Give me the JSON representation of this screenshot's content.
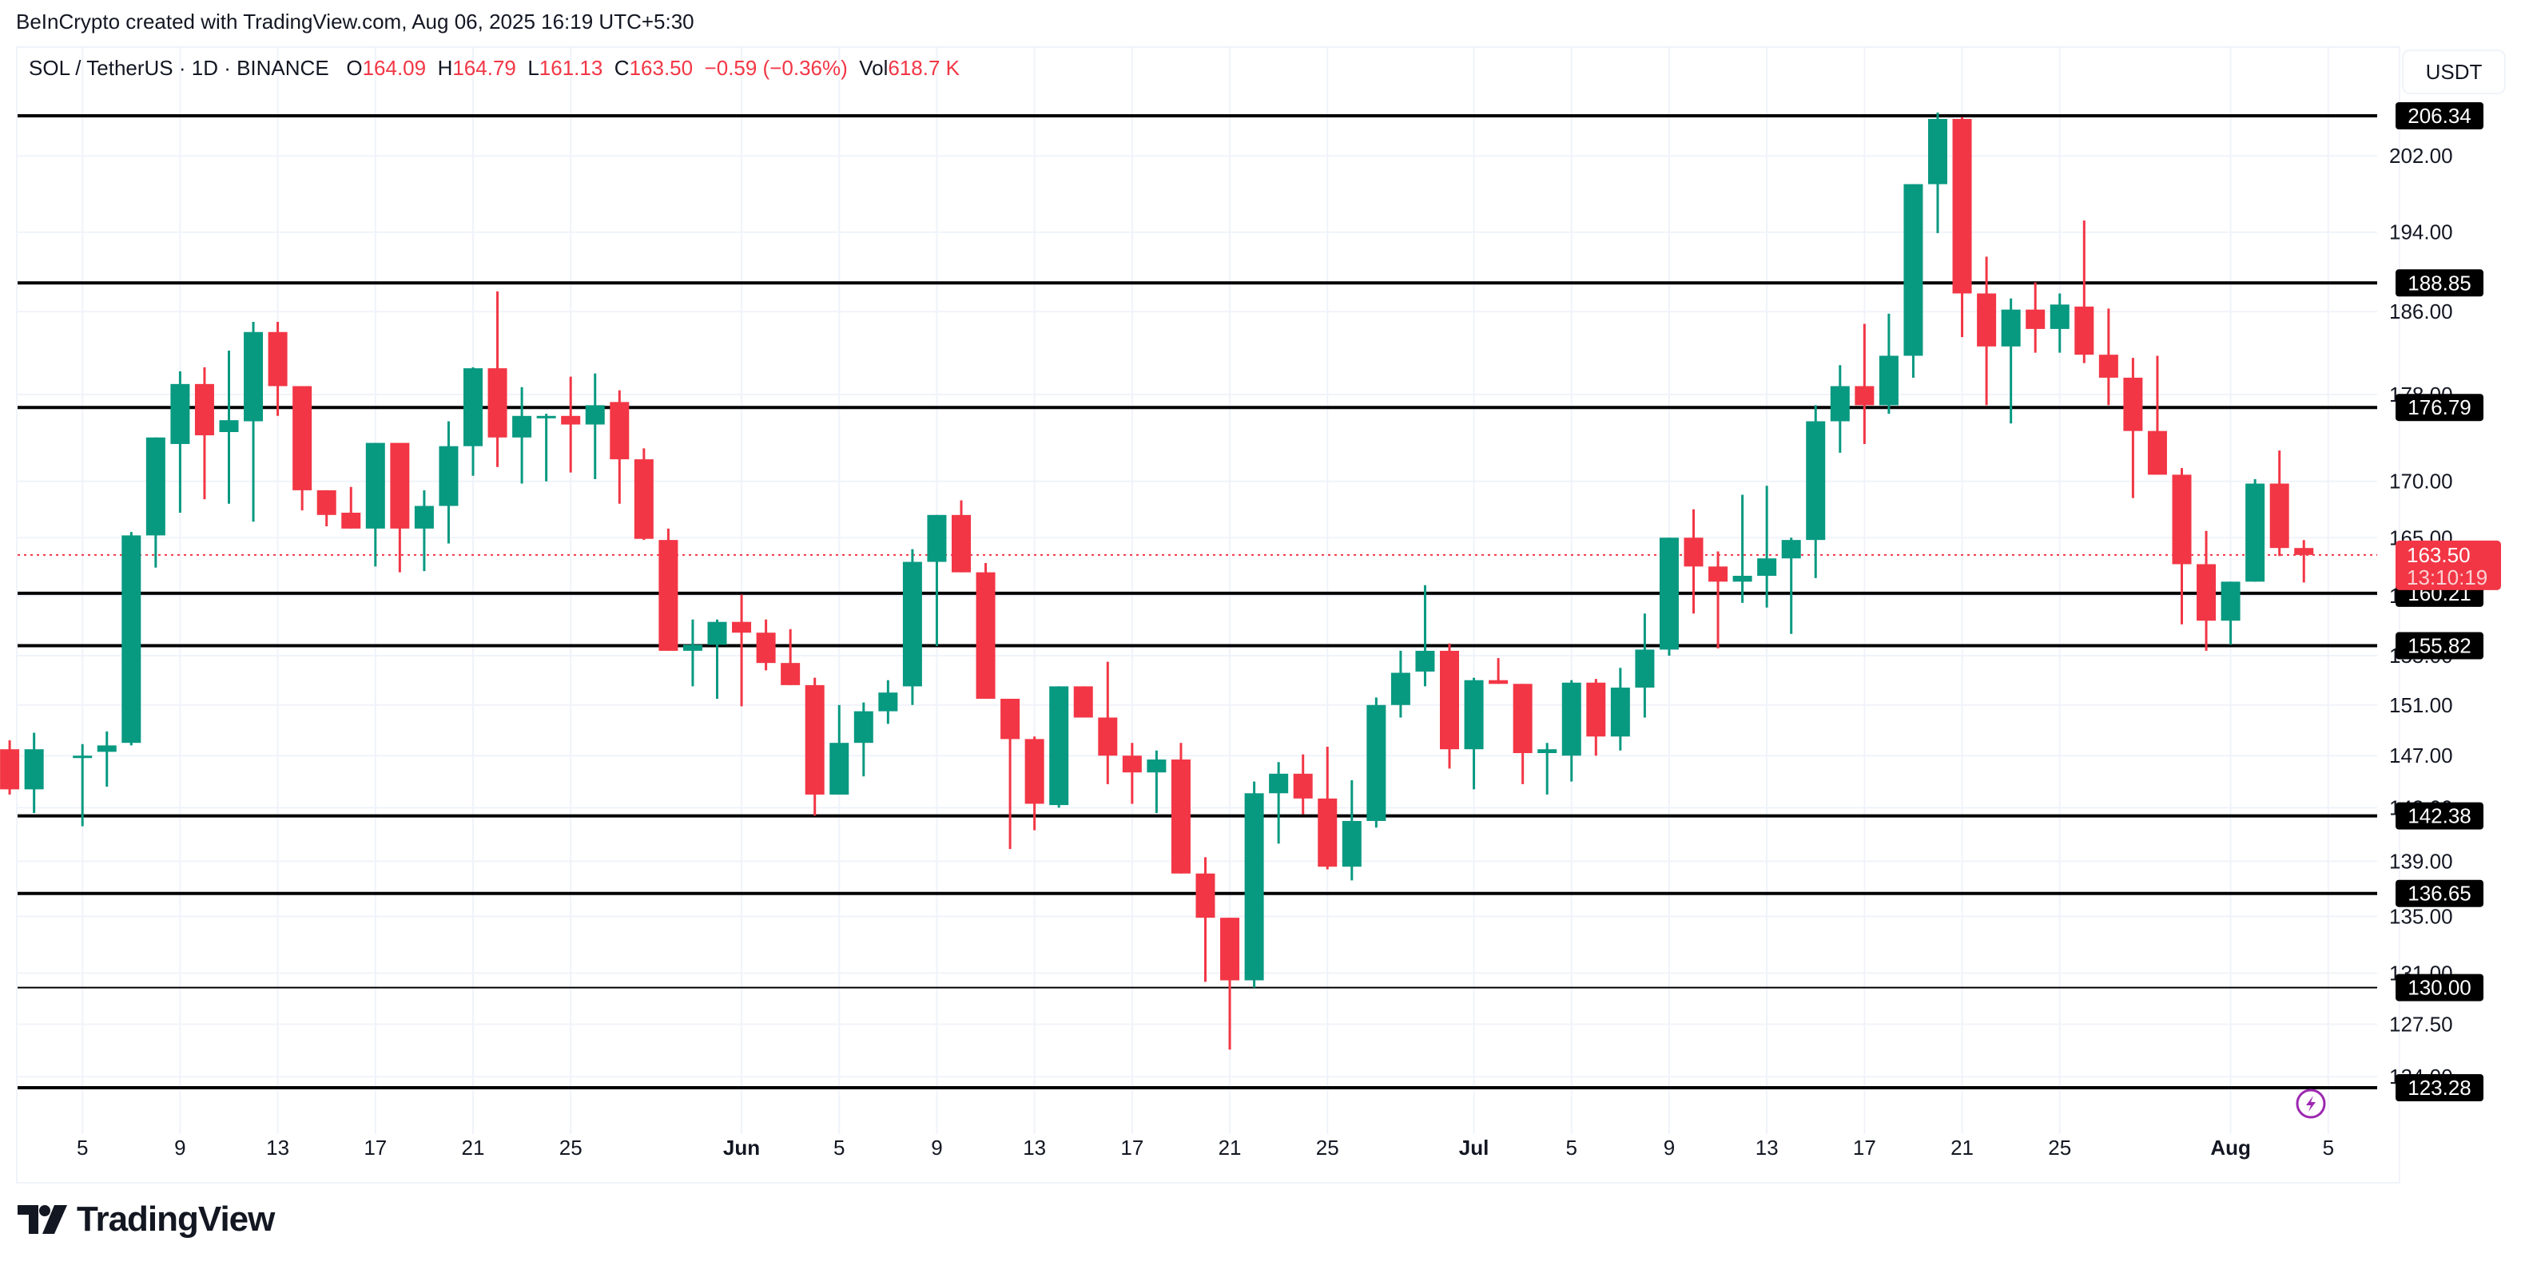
{
  "attribution": "BeInCrypto created with TradingView.com, Aug 06, 2025 16:19 UTC+5:30",
  "legend": {
    "symbol": "SOL / TetherUS · 1D · BINANCE",
    "open_label": "O",
    "open": "164.09",
    "high_label": "H",
    "high": "164.79",
    "low_label": "L",
    "low": "161.13",
    "close_label": "C",
    "close": "163.50",
    "change": "−0.59 (−0.36%)",
    "vol_label": "Vol",
    "vol": "618.7 K"
  },
  "currency_button": "USDT",
  "price_badge": {
    "price": "163.50",
    "countdown": "13:10:19",
    "color": "#f23645"
  },
  "logo_text": "TradingView",
  "colors": {
    "up": "#089981",
    "down": "#f23645",
    "level_line": "#000000",
    "grid": "#f0f3fa",
    "alert_icon": "#9c27b0"
  },
  "chart_data": {
    "type": "candlestick",
    "title": "SOL / TetherUS · 1D · BINANCE",
    "xlabel": "",
    "ylabel": "USDT",
    "ylim": [
      121.5,
      210
    ],
    "y_scale": "log",
    "y_ticks": [
      "202.00",
      "194.00",
      "186.00",
      "178.00",
      "170.00",
      "165.00",
      "160.00",
      "155.00",
      "151.00",
      "147.00",
      "143.00",
      "139.00",
      "135.00",
      "131.00",
      "127.50",
      "124.00"
    ],
    "x_ticks": [
      {
        "label": "5",
        "day": 2
      },
      {
        "label": "9",
        "day": 6
      },
      {
        "label": "13",
        "day": 10
      },
      {
        "label": "17",
        "day": 14
      },
      {
        "label": "21",
        "day": 18
      },
      {
        "label": "25",
        "day": 22
      },
      {
        "label": "Jun",
        "day": 29
      },
      {
        "label": "5",
        "day": 33
      },
      {
        "label": "9",
        "day": 37
      },
      {
        "label": "13",
        "day": 41
      },
      {
        "label": "17",
        "day": 45
      },
      {
        "label": "21",
        "day": 49
      },
      {
        "label": "25",
        "day": 53
      },
      {
        "label": "Jul",
        "day": 59
      },
      {
        "label": "5",
        "day": 63
      },
      {
        "label": "9",
        "day": 67
      },
      {
        "label": "13",
        "day": 71
      },
      {
        "label": "17",
        "day": 75
      },
      {
        "label": "21",
        "day": 79
      },
      {
        "label": "25",
        "day": 83
      },
      {
        "label": "Aug",
        "day": 90
      },
      {
        "label": "5",
        "day": 94
      }
    ],
    "horizontal_levels": [
      206.34,
      188.85,
      176.79,
      160.21,
      155.82,
      142.38,
      136.65,
      130.0,
      123.28
    ],
    "last_price": 163.5,
    "candles_start": "May 3",
    "candles": [
      [
        147.5,
        148.2,
        144.0,
        144.4
      ],
      [
        144.4,
        148.8,
        142.6,
        147.5
      ],
      [
        147.0,
        147.9,
        141.6,
        147.0
      ],
      [
        147.3,
        148.9,
        144.6,
        147.8
      ],
      [
        148.0,
        165.5,
        147.8,
        165.2
      ],
      [
        165.2,
        173.5,
        162.4,
        174.0
      ],
      [
        173.4,
        180.2,
        167.2,
        179.0
      ],
      [
        179.0,
        180.6,
        168.4,
        174.2
      ],
      [
        174.5,
        182.2,
        168.0,
        175.6
      ],
      [
        175.5,
        185.0,
        166.4,
        184.0
      ],
      [
        184.0,
        185.0,
        176.0,
        178.8
      ],
      [
        178.8,
        176.9,
        167.4,
        169.2
      ],
      [
        169.2,
        167.6,
        166.0,
        167.0
      ],
      [
        167.2,
        169.5,
        166.0,
        165.8
      ],
      [
        165.8,
        172.2,
        162.5,
        173.5
      ],
      [
        173.5,
        173.4,
        162.0,
        165.8
      ],
      [
        165.8,
        169.2,
        162.1,
        167.8
      ],
      [
        167.8,
        175.5,
        164.5,
        173.2
      ],
      [
        173.2,
        180.6,
        170.5,
        180.5
      ],
      [
        180.5,
        188.0,
        171.3,
        174.0
      ],
      [
        174.0,
        178.7,
        169.8,
        176.0
      ],
      [
        175.9,
        176.2,
        170.0,
        176.0
      ],
      [
        176.0,
        179.7,
        170.8,
        175.2
      ],
      [
        175.2,
        180.0,
        170.2,
        177.0
      ],
      [
        177.3,
        178.4,
        168.0,
        172.0
      ],
      [
        172.0,
        173.0,
        164.8,
        164.9
      ],
      [
        164.8,
        165.8,
        155.8,
        155.4
      ],
      [
        155.4,
        158.0,
        152.5,
        155.9
      ],
      [
        155.9,
        158.0,
        151.5,
        157.8
      ],
      [
        157.8,
        160.1,
        150.9,
        156.9
      ],
      [
        156.9,
        158.0,
        153.8,
        154.4
      ],
      [
        154.4,
        157.2,
        152.8,
        152.6
      ],
      [
        152.6,
        153.2,
        142.4,
        144.0
      ],
      [
        144.0,
        151.0,
        144.0,
        148.0
      ],
      [
        148.0,
        151.2,
        145.4,
        150.5
      ],
      [
        150.5,
        153.0,
        149.5,
        152.0
      ],
      [
        152.5,
        164.0,
        151.0,
        162.9
      ],
      [
        162.9,
        166.4,
        155.8,
        167.0
      ],
      [
        167.0,
        168.3,
        162.5,
        162.0
      ],
      [
        162.0,
        162.8,
        151.8,
        151.5
      ],
      [
        151.5,
        148.5,
        139.9,
        148.3
      ],
      [
        148.3,
        148.5,
        141.3,
        143.3
      ],
      [
        143.2,
        152.5,
        143.0,
        152.5
      ],
      [
        152.5,
        152.5,
        150.5,
        150.0
      ],
      [
        150.0,
        154.5,
        144.8,
        147.0
      ],
      [
        147.0,
        148.0,
        143.3,
        145.7
      ],
      [
        145.7,
        147.4,
        142.6,
        146.7
      ],
      [
        146.7,
        148.0,
        139.8,
        138.1
      ],
      [
        138.1,
        139.3,
        130.4,
        134.9
      ],
      [
        134.9,
        134.9,
        125.8,
        130.5
      ],
      [
        130.5,
        145.0,
        130.0,
        144.1
      ],
      [
        144.1,
        146.5,
        140.3,
        145.6
      ],
      [
        145.6,
        147.1,
        142.5,
        143.7
      ],
      [
        143.7,
        147.7,
        138.4,
        138.6
      ],
      [
        138.6,
        145.1,
        137.6,
        142.0
      ],
      [
        142.0,
        151.6,
        141.5,
        151.0
      ],
      [
        151.0,
        155.4,
        150.0,
        153.6
      ],
      [
        153.7,
        160.9,
        152.5,
        155.4
      ],
      [
        155.4,
        156.0,
        146.0,
        147.5
      ],
      [
        147.5,
        153.2,
        144.4,
        153.0
      ],
      [
        153.0,
        154.8,
        153.0,
        152.7
      ],
      [
        152.7,
        152.7,
        144.8,
        147.2
      ],
      [
        147.2,
        148.0,
        144.0,
        147.5
      ],
      [
        147.0,
        153.0,
        145.0,
        152.8
      ],
      [
        152.8,
        153.1,
        147.0,
        148.5
      ],
      [
        148.5,
        154.0,
        147.4,
        152.4
      ],
      [
        152.4,
        158.5,
        150.0,
        155.5
      ],
      [
        155.5,
        162.0,
        155.0,
        165.0
      ],
      [
        165.0,
        167.5,
        158.5,
        162.5
      ],
      [
        162.5,
        163.8,
        155.6,
        161.2
      ],
      [
        161.2,
        168.8,
        159.4,
        161.7
      ],
      [
        161.7,
        169.6,
        159.0,
        163.2
      ],
      [
        163.2,
        165.0,
        156.8,
        164.8
      ],
      [
        164.8,
        177.0,
        161.5,
        175.5
      ],
      [
        175.5,
        180.8,
        172.6,
        178.8
      ],
      [
        178.8,
        184.8,
        173.4,
        177.0
      ],
      [
        177.0,
        185.8,
        176.2,
        181.7
      ],
      [
        181.7,
        197.5,
        179.6,
        199.0
      ],
      [
        199.0,
        206.7,
        193.9,
        206.0
      ],
      [
        206.0,
        206.2,
        183.5,
        187.8
      ],
      [
        187.8,
        191.5,
        177.0,
        182.6
      ],
      [
        182.6,
        187.3,
        175.3,
        186.2
      ],
      [
        186.2,
        188.9,
        182.0,
        184.3
      ],
      [
        184.3,
        187.8,
        182.0,
        186.7
      ],
      [
        186.5,
        195.2,
        181.0,
        181.8
      ],
      [
        181.8,
        186.3,
        177.0,
        179.6
      ],
      [
        179.6,
        181.5,
        168.5,
        174.6
      ],
      [
        174.6,
        181.7,
        171.4,
        170.6
      ],
      [
        170.6,
        171.2,
        157.6,
        162.7
      ],
      [
        162.7,
        165.6,
        155.4,
        157.9
      ],
      [
        157.9,
        160.6,
        155.9,
        161.2
      ],
      [
        161.2,
        170.2,
        162.8,
        169.8
      ],
      [
        169.8,
        172.8,
        163.4,
        164.1
      ],
      [
        164.1,
        164.79,
        161.13,
        163.5
      ]
    ]
  }
}
